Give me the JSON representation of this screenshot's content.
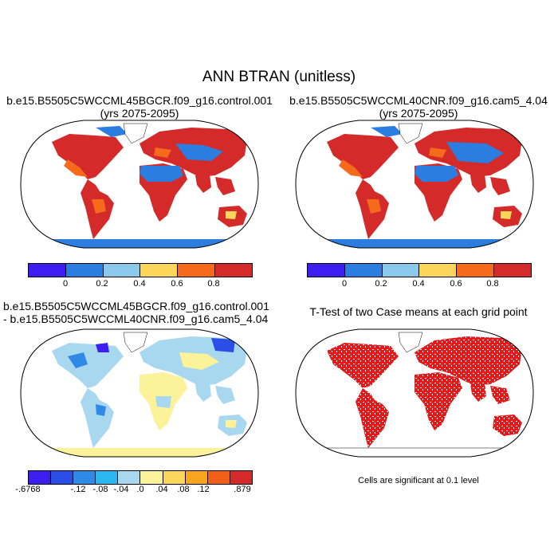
{
  "main_title": "ANN BTRAN (unitless)",
  "panels": {
    "top_left": {
      "title_line1": "b.e15.B5505C5WCCML45BGCR.f09_g16.control.001",
      "title_line2": "(yrs 2075-2095)"
    },
    "top_right": {
      "title_line1": "b.e15.B5505C5WCCML40CNR.f09_g16.cam5_4.04",
      "title_line2": "(yrs 2075-2095)"
    },
    "bottom_left": {
      "title_line1": "b.e15.B5505C5WCCML45BGCR.f09_g16.control.001",
      "title_line2": "- b.e15.B5505C5WCCML40CNR.f09_g16.cam5_4.04"
    },
    "bottom_right": {
      "title_line1": "T-Test of two Case means at each grid point",
      "note": "Cells are significant at 0.1 level"
    }
  },
  "colorbar_abs": {
    "colors": [
      "#3c1ef0",
      "#2b7de0",
      "#8ac8ec",
      "#fbd65a",
      "#f66a1c",
      "#d42a2a"
    ],
    "ticks": [
      "0",
      "0.2",
      "0.4",
      "0.6",
      "0.8"
    ]
  },
  "colorbar_diff": {
    "colors": [
      "#3c1ef0",
      "#2b4fe6",
      "#2f8ae6",
      "#2bb8f0",
      "#a8d8f0",
      "#fbf29a",
      "#fbd65a",
      "#f7a51c",
      "#f06018",
      "#d42a2a"
    ],
    "ticks": [
      "-.6768",
      "-.12",
      "-.08",
      "-.04",
      ".0",
      ".04",
      ".08",
      ".12",
      ".879"
    ]
  },
  "colors": {
    "land_abs_high": "#d42a2a",
    "land_abs_mid": "#f66a1c",
    "land_abs_dry": "#2b7de0",
    "antarctica": "#2b7de0",
    "diff_base": "#a8d8f0",
    "diff_dry": "#fbf29a",
    "significant": "#e31a1c"
  }
}
